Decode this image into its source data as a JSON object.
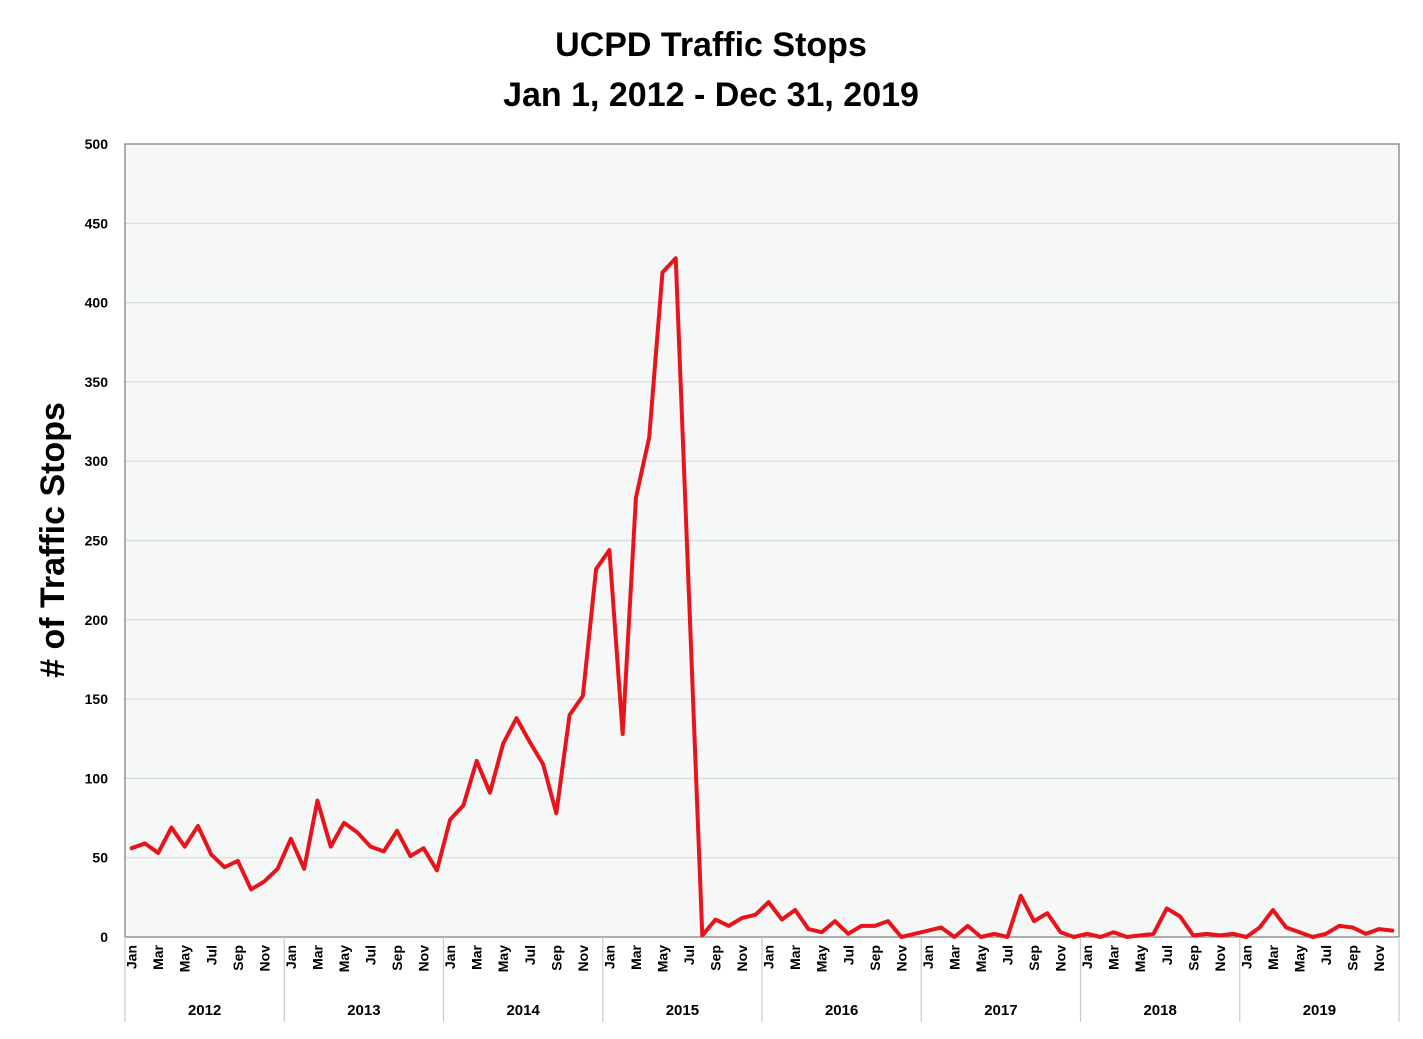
{
  "chart_data": {
    "type": "line",
    "title": "UCPD Traffic Stops",
    "subtitle": "Jan 1, 2012 - Dec 31, 2019",
    "xlabel": "",
    "ylabel": "# of Traffic Stops",
    "ylim": [
      0,
      500
    ],
    "yticks": [
      0,
      50,
      100,
      150,
      200,
      250,
      300,
      350,
      400,
      450,
      500
    ],
    "grid": true,
    "legend": "none",
    "colors": {
      "line": "#e8141b",
      "plot_background": "#f5f8f7",
      "grid": "#d6dcd9",
      "axis": "#7a7a7a"
    },
    "month_tick_labels": [
      "Jan",
      "Mar",
      "May",
      "Jul",
      "Sep",
      "Nov"
    ],
    "years": [
      "2012",
      "2013",
      "2014",
      "2015",
      "2016",
      "2017",
      "2018",
      "2019"
    ],
    "series": [
      {
        "values": [
          56,
          59,
          53,
          69,
          57,
          70,
          52,
          44,
          48,
          30,
          35,
          43,
          62,
          43,
          86,
          57,
          72,
          66,
          57,
          54,
          67,
          51,
          56,
          42,
          74,
          83,
          111,
          91,
          122,
          138,
          123,
          109,
          78,
          140,
          152,
          232,
          244,
          128,
          277,
          315,
          419,
          428,
          215,
          1,
          11,
          7,
          12,
          14,
          22,
          11,
          17,
          5,
          3,
          10,
          2,
          7,
          7,
          10,
          0,
          2,
          4,
          6,
          0,
          7,
          0,
          2,
          0,
          26,
          10,
          15,
          3,
          0,
          2,
          0,
          3,
          0,
          1,
          2,
          18,
          13,
          1,
          2,
          1,
          2,
          0,
          6,
          17,
          6,
          3,
          0,
          2,
          7,
          6,
          2,
          5,
          4
        ]
      }
    ]
  }
}
